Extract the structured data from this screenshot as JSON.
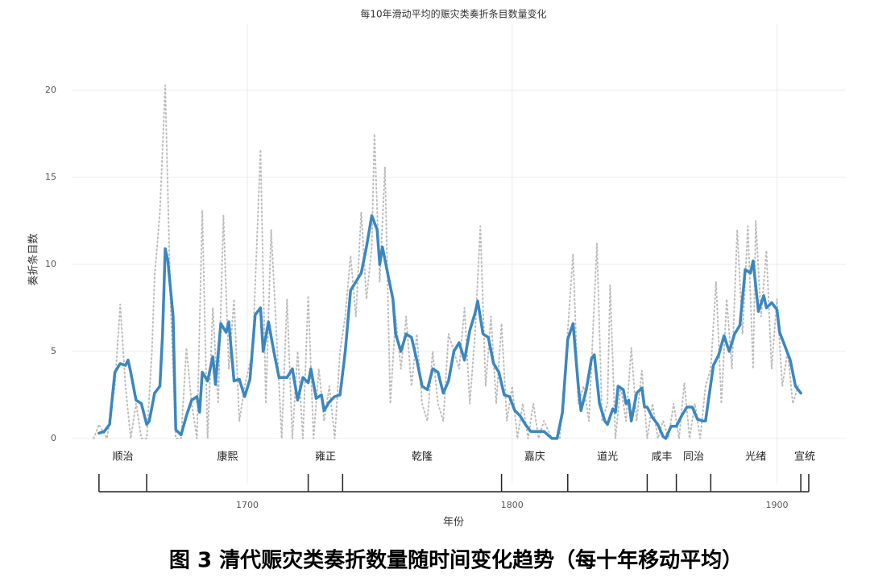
{
  "chart_data": {
    "type": "line",
    "title": "每10年滑动平均的赈灾类奏折条目数量变化",
    "xlabel": "年份",
    "ylabel": "奏折条目数",
    "caption": "图 3 清代赈灾类奏折数量随时间变化趋势（每十年移动平均）",
    "xlim": [
      1634,
      1926
    ],
    "xticks": [
      1700,
      1800,
      1900
    ],
    "ylim": [
      -2.6,
      23.8
    ],
    "yticks": [
      0,
      5,
      10,
      15,
      20
    ],
    "grid": true,
    "series": [
      {
        "color": "#bdbdbd",
        "style": "dotted",
        "x": [
          1642,
          1644,
          1647,
          1650,
          1652,
          1654,
          1656,
          1658,
          1660,
          1662,
          1664,
          1665,
          1667,
          1669,
          1671,
          1673,
          1675,
          1677,
          1679,
          1681,
          1683,
          1685,
          1687,
          1689,
          1691,
          1693,
          1695,
          1697,
          1699,
          1702,
          1705,
          1707,
          1709,
          1711,
          1713,
          1715,
          1717,
          1719,
          1721,
          1723,
          1725,
          1727,
          1729,
          1731,
          1733,
          1735,
          1737,
          1739,
          1741,
          1743,
          1745,
          1747,
          1748,
          1750,
          1752,
          1754,
          1756,
          1758,
          1760,
          1762,
          1764,
          1766,
          1768,
          1770,
          1772,
          1774,
          1776,
          1778,
          1780,
          1782,
          1784,
          1786,
          1788,
          1790,
          1792,
          1794,
          1796,
          1798,
          1800,
          1802,
          1804,
          1806,
          1808,
          1810,
          1812,
          1815,
          1818,
          1820,
          1823,
          1825,
          1827,
          1829,
          1832,
          1834,
          1836,
          1837,
          1839,
          1841,
          1843,
          1845,
          1847,
          1849,
          1851,
          1853,
          1855,
          1857,
          1859,
          1861,
          1863,
          1865,
          1867,
          1869,
          1871,
          1873,
          1875,
          1877,
          1879,
          1881,
          1883,
          1885,
          1887,
          1889,
          1891,
          1892,
          1894,
          1896,
          1898,
          1900,
          1902,
          1904,
          1906,
          1908
        ],
        "values": [
          0,
          0.8,
          0,
          3,
          7.7,
          3,
          0,
          2,
          0,
          0,
          5,
          9.3,
          13,
          20.3,
          8,
          0,
          0,
          5.2,
          2,
          0,
          13.1,
          0,
          7.5,
          2,
          12.8,
          4,
          8,
          1,
          3,
          5,
          16.6,
          2,
          12,
          6,
          0,
          8,
          0,
          5,
          0,
          8.2,
          0,
          4,
          1,
          3,
          0,
          5,
          7,
          10.5,
          7,
          13,
          8,
          11,
          17.5,
          9,
          15.6,
          2,
          7,
          4,
          7,
          3,
          6,
          2,
          1,
          5,
          2,
          1,
          6,
          5,
          4,
          7.5,
          2,
          6,
          12.2,
          3,
          7,
          2,
          6.6,
          1,
          3,
          0,
          2,
          0,
          2,
          0,
          1,
          0,
          0,
          4,
          10.6,
          2,
          3,
          1,
          11.2,
          1,
          2,
          8.8,
          0,
          3,
          1,
          5.2,
          1,
          3.9,
          0,
          2,
          0,
          1,
          0,
          2,
          0,
          3.2,
          0,
          2,
          0,
          3,
          4,
          9,
          2,
          8,
          4,
          12,
          6,
          12.2,
          4,
          12.5,
          7,
          10.8,
          4,
          8,
          3,
          5,
          2,
          3
        ]
      },
      {
        "color": "#3a87c0",
        "style": "solid",
        "x": [
          1644,
          1646,
          1648,
          1650,
          1652,
          1654,
          1655,
          1656,
          1658,
          1660,
          1662,
          1663,
          1665,
          1667,
          1668,
          1669,
          1670,
          1672,
          1673,
          1675,
          1677,
          1679,
          1681,
          1682,
          1683,
          1685,
          1687,
          1688,
          1690,
          1692,
          1693,
          1695,
          1697,
          1699,
          1701,
          1703,
          1705,
          1706,
          1708,
          1710,
          1712,
          1715,
          1717,
          1719,
          1721,
          1723,
          1724,
          1726,
          1728,
          1729,
          1731,
          1733,
          1735,
          1737,
          1739,
          1741,
          1743,
          1745,
          1747,
          1749,
          1750,
          1751,
          1753,
          1755,
          1756,
          1758,
          1760,
          1762,
          1764,
          1766,
          1768,
          1770,
          1772,
          1774,
          1776,
          1778,
          1780,
          1782,
          1784,
          1786,
          1787,
          1789,
          1791,
          1793,
          1795,
          1797,
          1799,
          1801,
          1803,
          1805,
          1807,
          1809,
          1812,
          1815,
          1817,
          1819,
          1821,
          1823,
          1825,
          1826,
          1828,
          1830,
          1831,
          1833,
          1835,
          1836,
          1838,
          1839,
          1840,
          1842,
          1843,
          1844,
          1845,
          1847,
          1849,
          1850,
          1851,
          1853,
          1855,
          1857,
          1858,
          1860,
          1862,
          1864,
          1866,
          1868,
          1870,
          1872,
          1873,
          1876,
          1878,
          1880,
          1882,
          1884,
          1886,
          1888,
          1890,
          1891,
          1893,
          1895,
          1896,
          1898,
          1900,
          1901,
          1903,
          1905,
          1907,
          1909
        ],
        "values": [
          0.3,
          0.4,
          0.8,
          3.8,
          4.3,
          4.2,
          4.5,
          3.8,
          2.2,
          2.0,
          0.8,
          1.0,
          2.6,
          3.0,
          6.0,
          10.9,
          10.2,
          7.0,
          0.5,
          0.2,
          1.3,
          2.2,
          2.4,
          1.5,
          3.8,
          3.3,
          4.7,
          3.1,
          6.6,
          6.1,
          6.7,
          3.3,
          3.4,
          2.4,
          3.4,
          7.1,
          7.5,
          5.0,
          6.7,
          5.0,
          3.5,
          3.5,
          4.0,
          2.2,
          3.5,
          3.2,
          4.0,
          2.3,
          2.5,
          1.6,
          2.1,
          2.4,
          2.5,
          5.0,
          8.5,
          9.0,
          9.5,
          11.0,
          12.8,
          12.0,
          10.0,
          11.0,
          9.5,
          8.0,
          6.0,
          5.0,
          6.0,
          5.8,
          4.5,
          3.0,
          2.8,
          4.0,
          3.8,
          2.6,
          3.3,
          5.0,
          5.5,
          4.5,
          6.2,
          7.2,
          7.9,
          6.0,
          5.8,
          4.3,
          3.8,
          2.5,
          2.4,
          1.6,
          1.3,
          0.8,
          0.4,
          0.4,
          0.4,
          0.0,
          0.0,
          1.5,
          5.7,
          6.6,
          3.0,
          1.6,
          2.8,
          4.6,
          4.8,
          2.0,
          1.0,
          0.8,
          1.7,
          1.5,
          3.0,
          2.8,
          2.0,
          2.2,
          1.0,
          2.6,
          2.9,
          1.8,
          1.8,
          1.2,
          0.8,
          0.1,
          0.0,
          0.7,
          0.7,
          1.3,
          1.8,
          1.8,
          1.1,
          1.0,
          1.0,
          4.2,
          4.8,
          5.9,
          5.0,
          6.0,
          6.5,
          9.7,
          9.5,
          10.2,
          7.3,
          8.2,
          7.5,
          7.8,
          7.4,
          6.1,
          5.3,
          4.5,
          3.0,
          2.6
        ]
      }
    ],
    "reigns": [
      {
        "name": "顺治",
        "start": 1644,
        "end": 1661
      },
      {
        "name": "康熙",
        "start": 1662,
        "end": 1722
      },
      {
        "name": "雍正",
        "start": 1723,
        "end": 1735
      },
      {
        "name": "乾隆",
        "start": 1736,
        "end": 1795
      },
      {
        "name": "嘉庆",
        "start": 1796,
        "end": 1820
      },
      {
        "name": "道光",
        "start": 1821,
        "end": 1850
      },
      {
        "name": "咸丰",
        "start": 1851,
        "end": 1861
      },
      {
        "name": "同治",
        "start": 1862,
        "end": 1874
      },
      {
        "name": "光绪",
        "start": 1875,
        "end": 1908
      },
      {
        "name": "宣统",
        "start": 1909,
        "end": 1911
      }
    ]
  }
}
